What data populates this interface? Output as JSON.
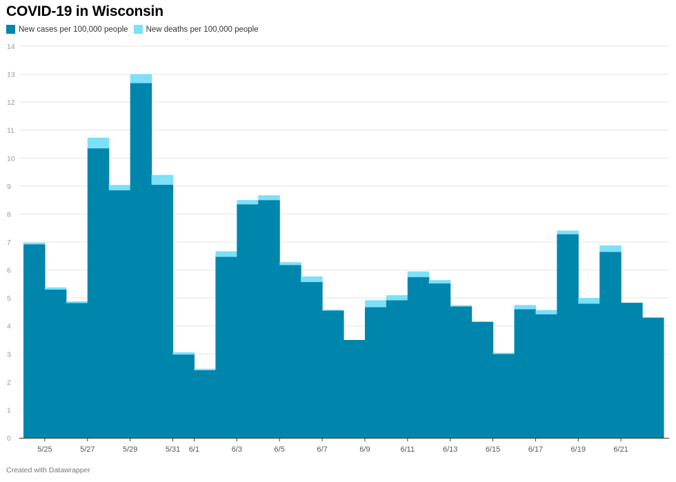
{
  "colors": {
    "cases": "#0086ad",
    "deaths": "#7ce0f8",
    "grid": "#e4e4e4",
    "axis": "#333333"
  },
  "footer": "Created with Datawrapper",
  "chart_data": {
    "type": "bar",
    "title": "COVID-19 in Wisconsin",
    "xlabel": "",
    "ylabel": "",
    "ylim": [
      0,
      14
    ],
    "yticks": [
      0,
      1,
      2,
      3,
      4,
      5,
      6,
      7,
      8,
      9,
      10,
      11,
      12,
      13,
      14
    ],
    "legend_position": "top-left",
    "stacked": true,
    "categories": [
      "5/24",
      "5/25",
      "5/26",
      "5/27",
      "5/28",
      "5/29",
      "5/30",
      "5/31",
      "6/1",
      "6/2",
      "6/3",
      "6/4",
      "6/5",
      "6/6",
      "6/7",
      "6/8",
      "6/9",
      "6/10",
      "6/11",
      "6/12",
      "6/13",
      "6/14",
      "6/15",
      "6/16",
      "6/17",
      "6/18",
      "6/19",
      "6/20",
      "6/21",
      "6/22"
    ],
    "tick_labels": [
      "5/25",
      "5/27",
      "5/29",
      "5/31",
      "6/1",
      "6/3",
      "6/5",
      "6/7",
      "6/9",
      "6/11",
      "6/13",
      "6/15",
      "6/17",
      "6/19",
      "6/21"
    ],
    "series": [
      {
        "name": "New cases per 100,000 people",
        "values": [
          6.92,
          5.3,
          4.82,
          10.35,
          8.85,
          12.68,
          9.05,
          2.98,
          2.42,
          6.47,
          8.35,
          8.5,
          6.18,
          5.57,
          4.55,
          3.5,
          4.67,
          4.92,
          5.75,
          5.52,
          4.7,
          4.15,
          3.0,
          4.6,
          4.42,
          7.28,
          4.8,
          6.65,
          4.83,
          4.3
        ]
      },
      {
        "name": "New deaths per 100,000 people",
        "values": [
          0.06,
          0.08,
          0.06,
          0.38,
          0.19,
          0.32,
          0.35,
          0.08,
          0.05,
          0.2,
          0.15,
          0.17,
          0.1,
          0.2,
          0.03,
          0.0,
          0.25,
          0.18,
          0.2,
          0.12,
          0.04,
          0.0,
          0.04,
          0.15,
          0.15,
          0.13,
          0.2,
          0.23,
          0.0,
          0.0
        ]
      }
    ]
  }
}
